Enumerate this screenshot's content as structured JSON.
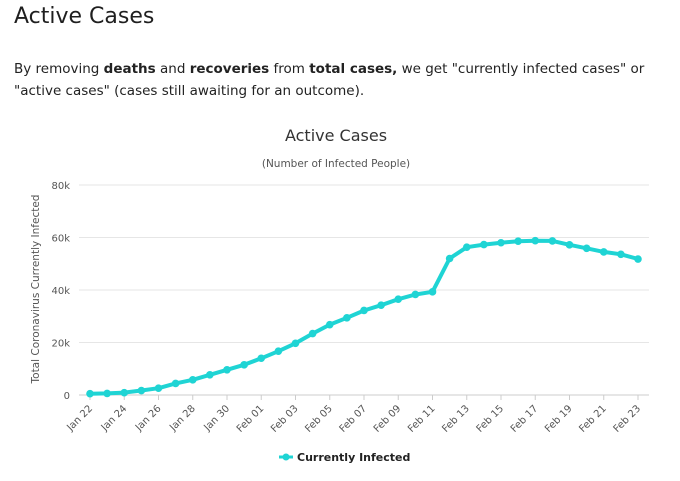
{
  "page": {
    "heading": "Active Cases",
    "intro": {
      "t1": "By removing ",
      "b1": "deaths",
      "t2": " and ",
      "b2": "recoveries",
      "t3": " from ",
      "b3": "total cases,",
      "t4": " we get \"currently infected cases\" or \"active cases\" (cases still awaiting for an outcome)."
    }
  },
  "colors": {
    "series": "#1fd4d4",
    "grid": "#e6e6e6",
    "axis": "#cccccc"
  },
  "chart_data": {
    "type": "line",
    "title": "Active Cases",
    "subtitle": "(Number of Infected People)",
    "ylabel": "Total Coronavirus Currently Infected",
    "xlabel": "",
    "ylim": [
      0,
      80000
    ],
    "yticks": [
      0,
      20000,
      40000,
      60000,
      80000
    ],
    "ytick_labels": [
      "0",
      "20k",
      "40k",
      "60k",
      "80k"
    ],
    "grid": true,
    "legend": "bottom-center",
    "x": [
      "Jan 22",
      "Jan 23",
      "Jan 24",
      "Jan 25",
      "Jan 26",
      "Jan 27",
      "Jan 28",
      "Jan 29",
      "Jan 30",
      "Jan 31",
      "Feb 01",
      "Feb 02",
      "Feb 03",
      "Feb 04",
      "Feb 05",
      "Feb 06",
      "Feb 07",
      "Feb 08",
      "Feb 09",
      "Feb 10",
      "Feb 11",
      "Feb 12",
      "Feb 13",
      "Feb 14",
      "Feb 15",
      "Feb 16",
      "Feb 17",
      "Feb 18",
      "Feb 19",
      "Feb 20",
      "Feb 21",
      "Feb 22",
      "Feb 23"
    ],
    "x_tick_labels": [
      "Jan 22",
      "Jan 24",
      "Jan 26",
      "Jan 28",
      "Jan 30",
      "Feb 01",
      "Feb 03",
      "Feb 05",
      "Feb 07",
      "Feb 09",
      "Feb 11",
      "Feb 13",
      "Feb 15",
      "Feb 17",
      "Feb 19",
      "Feb 21",
      "Feb 23"
    ],
    "series": [
      {
        "name": "Currently Infected",
        "values": [
          500,
          600,
          900,
          1700,
          2600,
          4400,
          5800,
          7700,
          9600,
          11500,
          14000,
          16700,
          19700,
          23400,
          26800,
          29400,
          32200,
          34200,
          36500,
          38300,
          39300,
          52000,
          56300,
          57300,
          58000,
          58600,
          58800,
          58700,
          57200,
          55900,
          54500,
          53600,
          51800
        ]
      }
    ]
  }
}
